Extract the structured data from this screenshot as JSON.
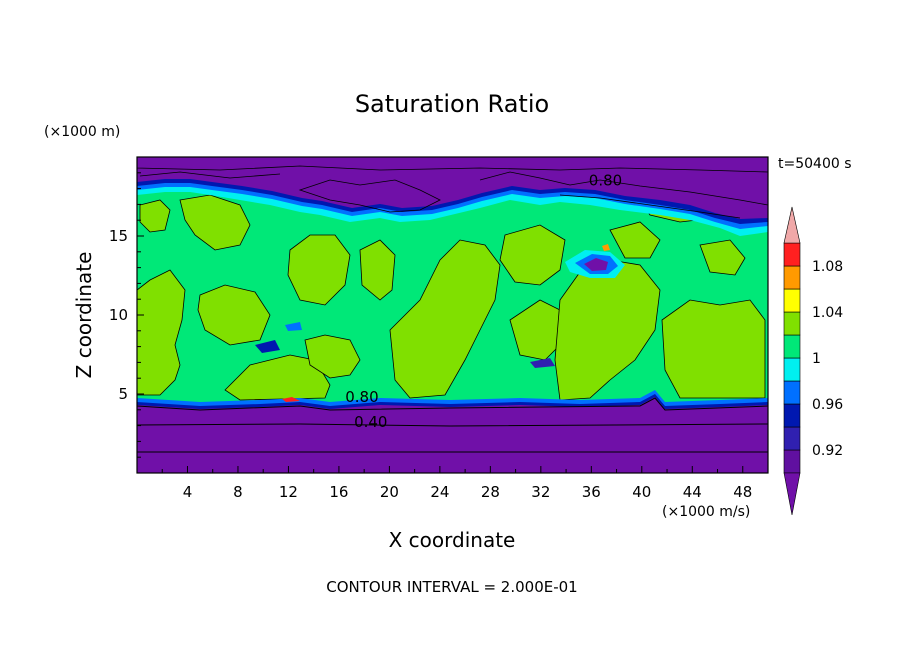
{
  "chart_data": {
    "type": "contour",
    "title": "Saturation Ratio",
    "xlabel": "X coordinate",
    "ylabel": "Z coordinate",
    "x_units": "(×1000 m/s)",
    "y_units": "(×1000 m)",
    "time_label": "t=50400 s",
    "footer": "CONTOUR INTERVAL = 2.000E-01",
    "xlim": [
      0,
      50
    ],
    "ylim": [
      0,
      20
    ],
    "x_ticks": [
      4,
      8,
      12,
      16,
      20,
      24,
      28,
      32,
      36,
      40,
      44,
      48
    ],
    "y_ticks": [
      5,
      10,
      15
    ],
    "contour_labels": [
      {
        "text": "0.80",
        "x": 16.5,
        "y": 4.5
      },
      {
        "text": "0.40",
        "x": 17.2,
        "y": 2.9
      },
      {
        "text": "0.80",
        "x": 35.8,
        "y": 18.2
      }
    ],
    "colorbar": {
      "levels": [
        0.9,
        0.92,
        0.94,
        0.96,
        0.98,
        1.0,
        1.02,
        1.04,
        1.06,
        1.08,
        1.1
      ],
      "tick_labels": [
        "0.92",
        "0.96",
        "1",
        "1.04",
        "1.08"
      ],
      "tick_values": [
        0.92,
        0.96,
        1.0,
        1.04,
        1.08
      ],
      "colors": [
        "#6010a0",
        "#3020b0",
        "#0018b0",
        "#0070ff",
        "#00f0f0",
        "#00e878",
        "#80e000",
        "#ffff00",
        "#ff9a00",
        "#ff2020",
        "#f0a0a0"
      ],
      "under_color": "#7010a8",
      "over_color": "#f0a8a8"
    },
    "regions": {
      "lower_dry_layer": {
        "z_from": 0,
        "z_to": 4.6,
        "value": "< 0.90"
      },
      "middle_layer": {
        "z_from": 4.6,
        "z_to": 17.5,
        "value_range": [
          0.98,
          1.02
        ]
      },
      "upper_dry_layer": {
        "z_from": 17.5,
        "z_to": 20,
        "value": "< 0.90"
      }
    }
  }
}
